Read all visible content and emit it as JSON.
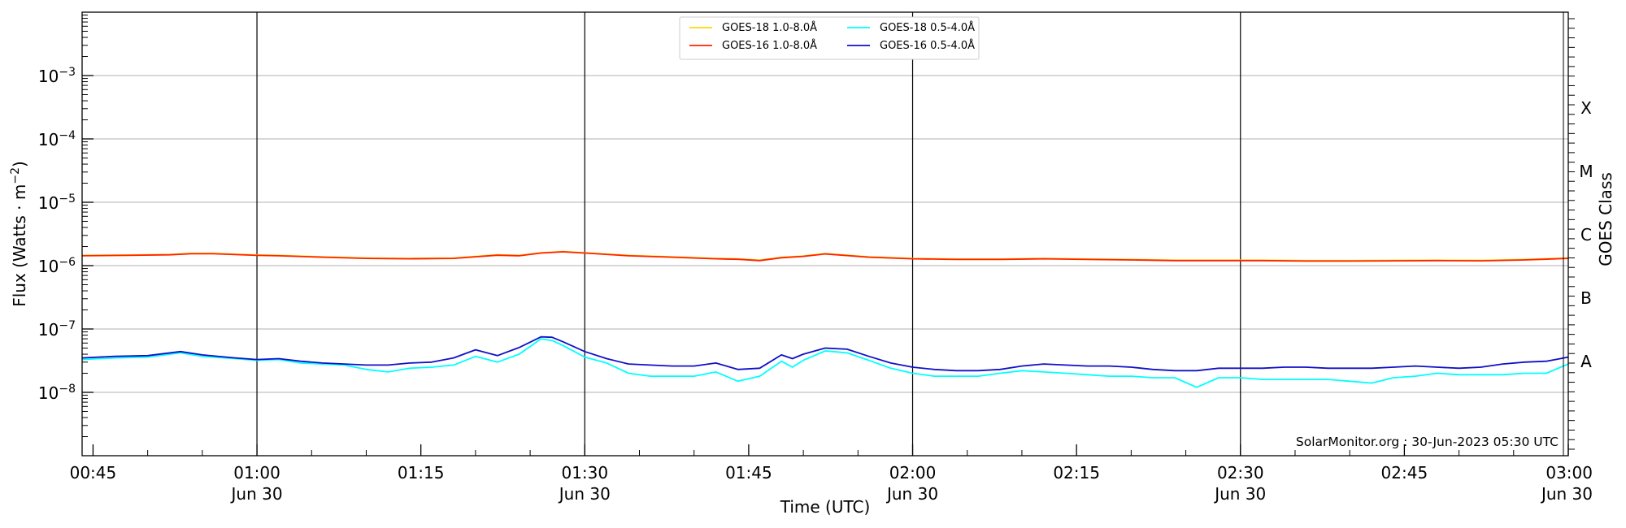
{
  "chart_data": {
    "type": "line",
    "xlabel": "Time (UTC)",
    "ylabel": "Flux (Watts · m",
    "ylabel_sup": "−2",
    "ylabel_close": ")",
    "y2label": "GOES Class",
    "credit": "SolarMonitor.org : 30-Jun-2023 05:30 UTC",
    "y_scale": "log",
    "ylim": [
      1e-09,
      0.01
    ],
    "xlim_minutes": [
      44,
      180
    ],
    "grid": "horizontal",
    "legend_position": "top-center",
    "y_ticks": [
      {
        "value": 1e-08,
        "base": "10",
        "exp": "−8"
      },
      {
        "value": 1e-07,
        "base": "10",
        "exp": "−7"
      },
      {
        "value": 1e-06,
        "base": "10",
        "exp": "−6"
      },
      {
        "value": 1e-05,
        "base": "10",
        "exp": "−5"
      },
      {
        "value": 0.0001,
        "base": "10",
        "exp": "−4"
      },
      {
        "value": 0.001,
        "base": "10",
        "exp": "−3"
      }
    ],
    "x_ticks": [
      {
        "minute": 45,
        "label": "00:45",
        "date": ""
      },
      {
        "minute": 60,
        "label": "01:00",
        "date": "Jun 30"
      },
      {
        "minute": 75,
        "label": "01:15",
        "date": ""
      },
      {
        "minute": 90,
        "label": "01:30",
        "date": "Jun 30"
      },
      {
        "minute": 105,
        "label": "01:45",
        "date": ""
      },
      {
        "minute": 120,
        "label": "02:00",
        "date": "Jun 30"
      },
      {
        "minute": 135,
        "label": "02:15",
        "date": ""
      },
      {
        "minute": 150,
        "label": "02:30",
        "date": "Jun 30"
      },
      {
        "minute": 165,
        "label": "02:45",
        "date": ""
      },
      {
        "minute": 180,
        "label": "03:00",
        "date": "Jun 30"
      }
    ],
    "vertical_lines_minutes": [
      60,
      90,
      120,
      150
    ],
    "goes_classes": [
      {
        "label": "A",
        "value": 3.16e-08
      },
      {
        "label": "B",
        "value": 3.16e-07
      },
      {
        "label": "C",
        "value": 3.16e-06
      },
      {
        "label": "M",
        "value": 3.16e-05
      },
      {
        "label": "X",
        "value": 0.000316
      }
    ],
    "series": [
      {
        "name": "GOES-18 1.0-8.0Å",
        "color": "#ffd700",
        "x": [
          44,
          48,
          52,
          54,
          56,
          60,
          62,
          66,
          70,
          74,
          78,
          80,
          82,
          84,
          86,
          88,
          90,
          94,
          98,
          102,
          104,
          106,
          108,
          110,
          112,
          116,
          120,
          124,
          128,
          132,
          136,
          140,
          144,
          148,
          152,
          156,
          160,
          164,
          168,
          172,
          176,
          180
        ],
        "y": [
          1.45e-06,
          1.47e-06,
          1.5e-06,
          1.56e-06,
          1.56e-06,
          1.47e-06,
          1.45e-06,
          1.38e-06,
          1.32e-06,
          1.3e-06,
          1.32e-06,
          1.4e-06,
          1.48e-06,
          1.45e-06,
          1.6e-06,
          1.67e-06,
          1.6e-06,
          1.45e-06,
          1.38e-06,
          1.3e-06,
          1.28e-06,
          1.22e-06,
          1.35e-06,
          1.42e-06,
          1.55e-06,
          1.38e-06,
          1.3e-06,
          1.27e-06,
          1.27e-06,
          1.3e-06,
          1.27e-06,
          1.25e-06,
          1.22e-06,
          1.22e-06,
          1.22e-06,
          1.2e-06,
          1.2e-06,
          1.21e-06,
          1.22e-06,
          1.21e-06,
          1.25e-06,
          1.32e-06
        ]
      },
      {
        "name": "GOES-16 1.0-8.0Å",
        "color": "#ff2200",
        "x": [
          44,
          48,
          52,
          54,
          56,
          60,
          62,
          66,
          70,
          74,
          78,
          80,
          82,
          84,
          86,
          88,
          90,
          94,
          98,
          102,
          104,
          106,
          108,
          110,
          112,
          116,
          120,
          124,
          128,
          132,
          136,
          140,
          144,
          148,
          152,
          156,
          160,
          164,
          168,
          172,
          176,
          180
        ],
        "y": [
          1.43e-06,
          1.45e-06,
          1.48e-06,
          1.54e-06,
          1.54e-06,
          1.45e-06,
          1.43e-06,
          1.36e-06,
          1.3e-06,
          1.28e-06,
          1.3e-06,
          1.38e-06,
          1.46e-06,
          1.43e-06,
          1.58e-06,
          1.65e-06,
          1.58e-06,
          1.43e-06,
          1.36e-06,
          1.28e-06,
          1.26e-06,
          1.2e-06,
          1.33e-06,
          1.4e-06,
          1.53e-06,
          1.36e-06,
          1.28e-06,
          1.25e-06,
          1.25e-06,
          1.28e-06,
          1.25e-06,
          1.23e-06,
          1.2e-06,
          1.2e-06,
          1.2e-06,
          1.18e-06,
          1.18e-06,
          1.19e-06,
          1.2e-06,
          1.19e-06,
          1.23e-06,
          1.3e-06
        ]
      },
      {
        "name": "GOES-18 0.5-4.0Å",
        "color": "#00ffff",
        "x": [
          44,
          47,
          50,
          53,
          55,
          58,
          60,
          62,
          64,
          66,
          68,
          70,
          72,
          74,
          76,
          78,
          80,
          82,
          84,
          86,
          87,
          88,
          90,
          92,
          94,
          96,
          98,
          100,
          102,
          104,
          106,
          108,
          109,
          110,
          112,
          114,
          116,
          118,
          120,
          122,
          124,
          126,
          128,
          130,
          132,
          134,
          136,
          138,
          140,
          142,
          144,
          146,
          148,
          150,
          152,
          154,
          156,
          158,
          160,
          162,
          164,
          166,
          168,
          170,
          172,
          174,
          176,
          178,
          180
        ],
        "y": [
          3.3e-08,
          3.5e-08,
          3.6e-08,
          4.2e-08,
          3.7e-08,
          3.4e-08,
          3.2e-08,
          3.3e-08,
          2.9e-08,
          2.8e-08,
          2.7e-08,
          2.3e-08,
          2.1e-08,
          2.4e-08,
          2.5e-08,
          2.7e-08,
          3.7e-08,
          3e-08,
          4e-08,
          7e-08,
          6.6e-08,
          5.5e-08,
          3.6e-08,
          2.9e-08,
          2e-08,
          1.8e-08,
          1.8e-08,
          1.8e-08,
          2.1e-08,
          1.5e-08,
          1.8e-08,
          3.1e-08,
          2.5e-08,
          3.2e-08,
          4.5e-08,
          4.2e-08,
          3.2e-08,
          2.4e-08,
          2e-08,
          1.8e-08,
          1.8e-08,
          1.8e-08,
          2e-08,
          2.2e-08,
          2.1e-08,
          2e-08,
          1.9e-08,
          1.8e-08,
          1.8e-08,
          1.7e-08,
          1.7e-08,
          1.2e-08,
          1.7e-08,
          1.7e-08,
          1.6e-08,
          1.6e-08,
          1.6e-08,
          1.6e-08,
          1.5e-08,
          1.4e-08,
          1.7e-08,
          1.8e-08,
          2e-08,
          1.9e-08,
          1.9e-08,
          1.9e-08,
          2e-08,
          2e-08,
          2.8e-08
        ]
      },
      {
        "name": "GOES-16 0.5-4.0Å",
        "color": "#1010c8",
        "x": [
          44,
          47,
          50,
          53,
          55,
          58,
          60,
          62,
          64,
          66,
          68,
          70,
          72,
          74,
          76,
          78,
          80,
          82,
          84,
          86,
          87,
          88,
          90,
          92,
          94,
          96,
          98,
          100,
          102,
          104,
          106,
          108,
          109,
          110,
          112,
          114,
          116,
          118,
          120,
          122,
          124,
          126,
          128,
          130,
          132,
          134,
          136,
          138,
          140,
          142,
          144,
          146,
          148,
          150,
          152,
          154,
          156,
          158,
          160,
          162,
          164,
          166,
          168,
          170,
          172,
          174,
          176,
          178,
          180
        ],
        "y": [
          3.5e-08,
          3.7e-08,
          3.8e-08,
          4.4e-08,
          3.9e-08,
          3.5e-08,
          3.3e-08,
          3.4e-08,
          3.1e-08,
          2.9e-08,
          2.8e-08,
          2.7e-08,
          2.7e-08,
          2.9e-08,
          3e-08,
          3.5e-08,
          4.7e-08,
          3.8e-08,
          5.1e-08,
          7.5e-08,
          7.4e-08,
          6.3e-08,
          4.4e-08,
          3.4e-08,
          2.8e-08,
          2.7e-08,
          2.6e-08,
          2.6e-08,
          2.9e-08,
          2.3e-08,
          2.4e-08,
          3.9e-08,
          3.4e-08,
          4e-08,
          5e-08,
          4.8e-08,
          3.7e-08,
          2.9e-08,
          2.5e-08,
          2.3e-08,
          2.2e-08,
          2.2e-08,
          2.3e-08,
          2.6e-08,
          2.8e-08,
          2.7e-08,
          2.6e-08,
          2.6e-08,
          2.5e-08,
          2.3e-08,
          2.2e-08,
          2.2e-08,
          2.4e-08,
          2.4e-08,
          2.4e-08,
          2.5e-08,
          2.5e-08,
          2.4e-08,
          2.4e-08,
          2.4e-08,
          2.5e-08,
          2.6e-08,
          2.5e-08,
          2.4e-08,
          2.5e-08,
          2.8e-08,
          3e-08,
          3.1e-08,
          3.6e-08
        ]
      }
    ]
  }
}
